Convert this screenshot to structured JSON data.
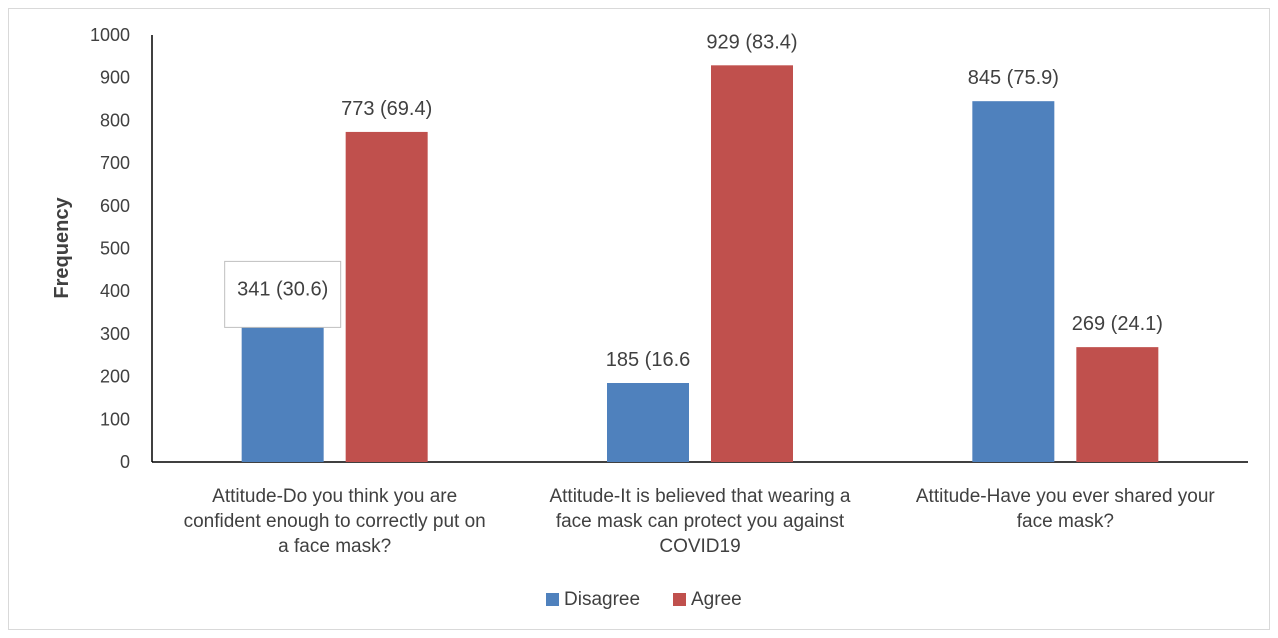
{
  "chart_data": {
    "type": "bar",
    "categories": [
      [
        "Attitude-Do you think you are",
        "confident enough to correctly put on",
        "a face mask?"
      ],
      [
        "Attitude-It is believed that wearing a",
        "face mask can protect you against",
        "COVID19"
      ],
      [
        "Attitude-Have you ever shared your",
        "face mask?"
      ]
    ],
    "series": [
      {
        "name": "Disagree",
        "color": "#4f81bd",
        "values": [
          341,
          185,
          845
        ],
        "labels": [
          "341 (30.6)",
          "185 (16.6",
          "845 (75.9)"
        ]
      },
      {
        "name": "Agree",
        "color": "#c0504d",
        "values": [
          773,
          929,
          269
        ],
        "labels": [
          "773 (69.4)",
          "929 (83.4)",
          "269 (24.1)"
        ]
      }
    ],
    "title": "",
    "xlabel": "",
    "ylabel": "Frequency",
    "ylim": [
      0,
      1000
    ],
    "yticks": [
      0,
      100,
      200,
      300,
      400,
      500,
      600,
      700,
      800,
      900,
      1000
    ],
    "grid": false,
    "legend_position": "bottom"
  }
}
